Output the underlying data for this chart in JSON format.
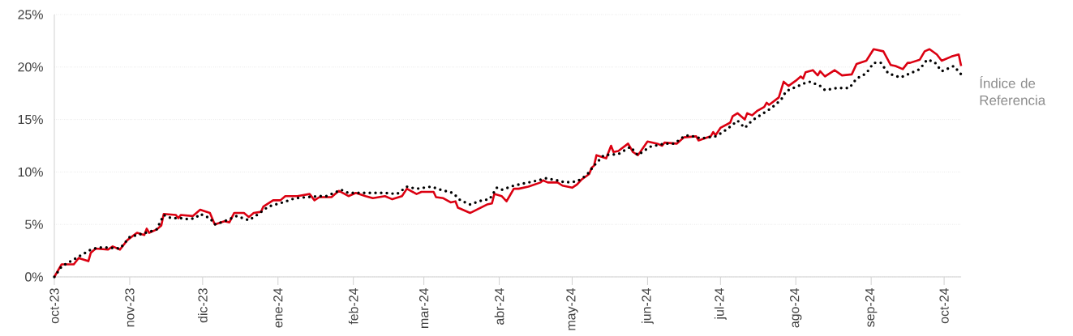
{
  "chart_data": {
    "type": "line",
    "xlim": [
      "2023-10-01",
      "2024-10-08"
    ],
    "xticks": [
      {
        "value": "2023-10-01",
        "label": "oct-23"
      },
      {
        "value": "2023-11-01",
        "label": "nov-23"
      },
      {
        "value": "2023-12-01",
        "label": "dic-23"
      },
      {
        "value": "2024-01-01",
        "label": "ene-24"
      },
      {
        "value": "2024-02-01",
        "label": "feb-24"
      },
      {
        "value": "2024-03-01",
        "label": "mar-24"
      },
      {
        "value": "2024-04-01",
        "label": "abr-24"
      },
      {
        "value": "2024-05-01",
        "label": "may-24"
      },
      {
        "value": "2024-06-01",
        "label": "jun-24"
      },
      {
        "value": "2024-07-01",
        "label": "jul-24"
      },
      {
        "value": "2024-08-01",
        "label": "ago-24"
      },
      {
        "value": "2024-09-01",
        "label": "sep-24"
      },
      {
        "value": "2024-10-01",
        "label": "oct-24"
      }
    ],
    "ylim": [
      0,
      25
    ],
    "yticks": [
      {
        "value": 0,
        "label": "0%"
      },
      {
        "value": 5,
        "label": "5%"
      },
      {
        "value": 10,
        "label": "10%"
      },
      {
        "value": 15,
        "label": "15%"
      },
      {
        "value": 20,
        "label": "20%"
      },
      {
        "value": 25,
        "label": "25%"
      }
    ],
    "grid": "y",
    "legend": "right",
    "series": [
      {
        "color": "#db0011",
        "line_style": "solid",
        "x": [
          "2023-10-01",
          "2023-10-04",
          "2023-10-09",
          "2023-10-11",
          "2023-10-15",
          "2023-10-16",
          "2023-10-18",
          "2023-10-23",
          "2023-10-25",
          "2023-10-28",
          "2023-10-31",
          "2023-11-04",
          "2023-11-07",
          "2023-11-08",
          "2023-11-09",
          "2023-11-12",
          "2023-11-14",
          "2023-11-15",
          "2023-11-20",
          "2023-11-21",
          "2023-11-22",
          "2023-11-27",
          "2023-11-30",
          "2023-12-04",
          "2023-12-06",
          "2023-12-10",
          "2023-12-12",
          "2023-12-14",
          "2023-12-18",
          "2023-12-20",
          "2023-12-22",
          "2023-12-25",
          "2023-12-26",
          "2023-12-30",
          "2024-01-02",
          "2024-01-04",
          "2024-01-09",
          "2024-01-14",
          "2024-01-16",
          "2024-01-18",
          "2024-01-23",
          "2024-01-26",
          "2024-01-30",
          "2024-02-02",
          "2024-02-06",
          "2024-02-09",
          "2024-02-14",
          "2024-02-17",
          "2024-02-21",
          "2024-02-23",
          "2024-02-27",
          "2024-02-29",
          "2024-03-05",
          "2024-03-06",
          "2024-03-09",
          "2024-03-12",
          "2024-03-14",
          "2024-03-15",
          "2024-03-16",
          "2024-03-20",
          "2024-03-21",
          "2024-03-27",
          "2024-03-29",
          "2024-03-30",
          "2024-04-02",
          "2024-04-04",
          "2024-04-05",
          "2024-04-07",
          "2024-04-09",
          "2024-04-13",
          "2024-04-18",
          "2024-04-19",
          "2024-04-21",
          "2024-04-25",
          "2024-04-27",
          "2024-05-01",
          "2024-05-03",
          "2024-05-05",
          "2024-05-08",
          "2024-05-09",
          "2024-05-10",
          "2024-05-11",
          "2024-05-15",
          "2024-05-17",
          "2024-05-18",
          "2024-05-20",
          "2024-05-24",
          "2024-05-26",
          "2024-05-28",
          "2024-05-29",
          "2024-06-01",
          "2024-06-05",
          "2024-06-07",
          "2024-06-08",
          "2024-06-13",
          "2024-06-16",
          "2024-06-21",
          "2024-06-22",
          "2024-06-27",
          "2024-06-28",
          "2024-06-29",
          "2024-07-01",
          "2024-07-05",
          "2024-07-06",
          "2024-07-08",
          "2024-07-11",
          "2024-07-12",
          "2024-07-14",
          "2024-07-16",
          "2024-07-19",
          "2024-07-20",
          "2024-07-21",
          "2024-07-25",
          "2024-07-27",
          "2024-07-29",
          "2024-08-01",
          "2024-08-03",
          "2024-08-04",
          "2024-08-05",
          "2024-08-08",
          "2024-08-10",
          "2024-08-11",
          "2024-08-13",
          "2024-08-17",
          "2024-08-20",
          "2024-08-24",
          "2024-08-26",
          "2024-08-30",
          "2024-09-02",
          "2024-09-06",
          "2024-09-09",
          "2024-09-11",
          "2024-09-14",
          "2024-09-16",
          "2024-09-17",
          "2024-09-21",
          "2024-09-23",
          "2024-09-25",
          "2024-09-28",
          "2024-09-30",
          "2024-10-04",
          "2024-10-07",
          "2024-10-08"
        ],
        "values": [
          0,
          1.2,
          1.2,
          1.8,
          1.5,
          2.3,
          2.7,
          2.6,
          2.9,
          2.6,
          3.5,
          4.2,
          4.0,
          4.6,
          4.2,
          4.5,
          4.9,
          6.0,
          5.9,
          5.6,
          5.9,
          5.8,
          6.4,
          6.1,
          5.0,
          5.3,
          5.2,
          6.1,
          6.1,
          5.7,
          6.1,
          6.2,
          6.7,
          7.3,
          7.3,
          7.7,
          7.7,
          7.9,
          7.3,
          7.6,
          7.6,
          8.2,
          7.7,
          8.0,
          7.7,
          7.5,
          7.7,
          7.4,
          7.7,
          8.4,
          7.9,
          8.1,
          8.1,
          7.6,
          7.5,
          7.1,
          7.2,
          6.6,
          6.5,
          6.1,
          6.2,
          6.9,
          7.0,
          7.9,
          7.7,
          7.2,
          7.6,
          8.4,
          8.4,
          8.6,
          9.0,
          9.2,
          9.0,
          9.0,
          8.7,
          8.5,
          8.8,
          9.3,
          9.8,
          10.4,
          10.6,
          11.6,
          11.3,
          12.5,
          11.9,
          12.0,
          12.7,
          11.9,
          11.6,
          11.9,
          12.9,
          12.7,
          12.5,
          12.8,
          12.7,
          13.3,
          13.4,
          13.0,
          13.4,
          13.8,
          13.5,
          14.2,
          14.7,
          15.3,
          15.6,
          15.0,
          15.6,
          15.4,
          15.8,
          16.2,
          16.6,
          16.4,
          17.1,
          18.6,
          18.2,
          18.7,
          19.1,
          18.9,
          19.5,
          19.7,
          19.2,
          19.6,
          19.1,
          19.7,
          19.2,
          19.3,
          20.3,
          20.6,
          21.7,
          21.5,
          20.2,
          20.1,
          19.8,
          20.4,
          20.4,
          20.7,
          21.5,
          21.7,
          21.2,
          20.6,
          21.0,
          21.2,
          20.1
        ]
      },
      {
        "name": "Índice de Referencia",
        "color": "#000000",
        "line_style": "dotted",
        "x": [
          "2023-10-01",
          "2023-10-04",
          "2023-10-16",
          "2023-10-19",
          "2023-10-22",
          "2023-10-28",
          "2023-11-01",
          "2023-11-06",
          "2023-11-12",
          "2023-11-15",
          "2023-11-18",
          "2023-11-22",
          "2023-11-25",
          "2023-11-28",
          "2023-11-30",
          "2023-12-04",
          "2023-12-06",
          "2023-12-10",
          "2023-12-15",
          "2023-12-20",
          "2023-12-24",
          "2023-12-28",
          "2024-01-03",
          "2024-01-08",
          "2024-01-18",
          "2024-01-21",
          "2024-01-27",
          "2024-01-30",
          "2024-02-03",
          "2024-02-08",
          "2024-02-14",
          "2024-02-19",
          "2024-02-23",
          "2024-02-27",
          "2024-03-04",
          "2024-03-08",
          "2024-03-13",
          "2024-03-16",
          "2024-03-20",
          "2024-03-25",
          "2024-03-28",
          "2024-03-31",
          "2024-04-02",
          "2024-04-07",
          "2024-04-13",
          "2024-04-17",
          "2024-04-20",
          "2024-04-25",
          "2024-04-28",
          "2024-05-03",
          "2024-05-07",
          "2024-05-10",
          "2024-05-14",
          "2024-05-20",
          "2024-05-25",
          "2024-05-28",
          "2024-06-02",
          "2024-06-08",
          "2024-06-12",
          "2024-06-16",
          "2024-06-18",
          "2024-06-23",
          "2024-06-29",
          "2024-07-02",
          "2024-07-06",
          "2024-07-08",
          "2024-07-11",
          "2024-07-14",
          "2024-07-18",
          "2024-07-22",
          "2024-07-26",
          "2024-07-28",
          "2024-08-01",
          "2024-08-05",
          "2024-08-07",
          "2024-08-11",
          "2024-08-13",
          "2024-08-18",
          "2024-08-23",
          "2024-08-26",
          "2024-08-30",
          "2024-09-02",
          "2024-09-05",
          "2024-09-08",
          "2024-09-13",
          "2024-09-17",
          "2024-09-21",
          "2024-09-24",
          "2024-09-27",
          "2024-09-30",
          "2024-10-05",
          "2024-10-08"
        ],
        "values": [
          0,
          1.0,
          2.6,
          2.8,
          2.8,
          2.7,
          3.8,
          4.1,
          4.5,
          5.9,
          5.6,
          5.6,
          5.5,
          5.6,
          6.0,
          5.6,
          5.0,
          5.3,
          5.8,
          5.4,
          6.0,
          6.7,
          7.1,
          7.5,
          7.7,
          7.7,
          8.3,
          8.0,
          8.0,
          8.0,
          8.0,
          7.9,
          8.6,
          8.4,
          8.6,
          8.3,
          8.0,
          7.3,
          6.9,
          7.3,
          7.4,
          8.5,
          8.3,
          8.7,
          9.0,
          9.2,
          9.4,
          9.2,
          9.0,
          9.1,
          9.7,
          10.6,
          11.6,
          11.7,
          12.4,
          11.6,
          12.4,
          12.7,
          12.7,
          13.4,
          13.5,
          13.2,
          13.4,
          13.8,
          14.5,
          14.9,
          14.2,
          14.9,
          15.5,
          16.1,
          16.9,
          17.7,
          18.1,
          18.5,
          18.6,
          18.2,
          17.8,
          18.0,
          18.0,
          18.9,
          19.4,
          20.4,
          20.4,
          19.4,
          19.0,
          19.4,
          19.8,
          20.7,
          20.5,
          19.6,
          20.1,
          19.3
        ]
      }
    ]
  }
}
